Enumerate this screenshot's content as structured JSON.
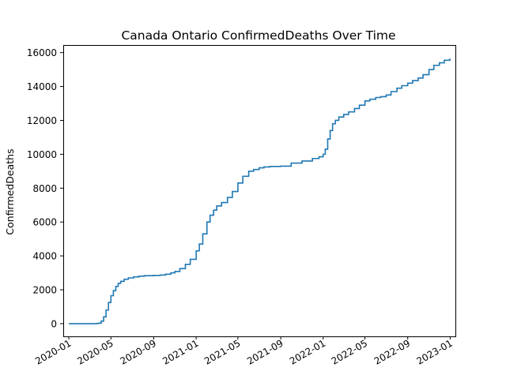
{
  "chart_data": {
    "type": "line",
    "title": "Canada Ontario ConfirmedDeaths Over Time",
    "xlabel": "",
    "ylabel": "ConfirmedDeaths",
    "xlim": [
      "2019-12-16",
      "2023-01-16"
    ],
    "ylim": [
      -750,
      16450
    ],
    "x_ticks": [
      "2020-01",
      "2020-05",
      "2020-09",
      "2021-01",
      "2021-05",
      "2021-09",
      "2022-01",
      "2022-05",
      "2022-09",
      "2023-01"
    ],
    "y_ticks": [
      0,
      2000,
      4000,
      6000,
      8000,
      10000,
      12000,
      14000,
      16000
    ],
    "y_tick_labels": [
      "0",
      "2000",
      "4000",
      "6000",
      "8000",
      "10000",
      "12000",
      "14000",
      "16000"
    ],
    "grid": false,
    "step": true,
    "color": "#1f77b4",
    "series": [
      {
        "name": "",
        "points": [
          [
            "2020-01-01",
            0
          ],
          [
            "2020-03-01",
            0
          ],
          [
            "2020-03-20",
            10
          ],
          [
            "2020-03-27",
            30
          ],
          [
            "2020-04-03",
            150
          ],
          [
            "2020-04-10",
            400
          ],
          [
            "2020-04-17",
            800
          ],
          [
            "2020-04-24",
            1250
          ],
          [
            "2020-05-01",
            1650
          ],
          [
            "2020-05-08",
            1950
          ],
          [
            "2020-05-15",
            2200
          ],
          [
            "2020-05-22",
            2380
          ],
          [
            "2020-05-29",
            2500
          ],
          [
            "2020-06-08",
            2620
          ],
          [
            "2020-06-20",
            2700
          ],
          [
            "2020-07-05",
            2760
          ],
          [
            "2020-07-20",
            2800
          ],
          [
            "2020-08-05",
            2830
          ],
          [
            "2020-09-01",
            2850
          ],
          [
            "2020-09-20",
            2870
          ],
          [
            "2020-10-05",
            2920
          ],
          [
            "2020-10-20",
            3000
          ],
          [
            "2020-11-01",
            3080
          ],
          [
            "2020-11-15",
            3250
          ],
          [
            "2020-12-01",
            3500
          ],
          [
            "2020-12-15",
            3800
          ],
          [
            "2021-01-01",
            4300
          ],
          [
            "2021-01-10",
            4700
          ],
          [
            "2021-01-20",
            5300
          ],
          [
            "2021-02-01",
            6000
          ],
          [
            "2021-02-10",
            6400
          ],
          [
            "2021-02-20",
            6700
          ],
          [
            "2021-03-01",
            6950
          ],
          [
            "2021-03-15",
            7150
          ],
          [
            "2021-04-01",
            7450
          ],
          [
            "2021-04-15",
            7800
          ],
          [
            "2021-05-01",
            8300
          ],
          [
            "2021-05-15",
            8700
          ],
          [
            "2021-06-01",
            9000
          ],
          [
            "2021-06-15",
            9100
          ],
          [
            "2021-07-01",
            9200
          ],
          [
            "2021-07-15",
            9250
          ],
          [
            "2021-08-01",
            9280
          ],
          [
            "2021-09-01",
            9300
          ],
          [
            "2021-10-01",
            9480
          ],
          [
            "2021-11-01",
            9600
          ],
          [
            "2021-12-01",
            9750
          ],
          [
            "2021-12-20",
            9850
          ],
          [
            "2022-01-01",
            10000
          ],
          [
            "2022-01-07",
            10300
          ],
          [
            "2022-01-14",
            10900
          ],
          [
            "2022-01-21",
            11400
          ],
          [
            "2022-01-28",
            11800
          ],
          [
            "2022-02-05",
            12000
          ],
          [
            "2022-02-15",
            12200
          ],
          [
            "2022-03-01",
            12350
          ],
          [
            "2022-03-15",
            12500
          ],
          [
            "2022-04-01",
            12700
          ],
          [
            "2022-04-15",
            12900
          ],
          [
            "2022-05-01",
            13150
          ],
          [
            "2022-05-15",
            13250
          ],
          [
            "2022-06-01",
            13350
          ],
          [
            "2022-06-15",
            13400
          ],
          [
            "2022-07-01",
            13500
          ],
          [
            "2022-07-15",
            13700
          ],
          [
            "2022-08-01",
            13900
          ],
          [
            "2022-08-15",
            14050
          ],
          [
            "2022-09-01",
            14200
          ],
          [
            "2022-09-15",
            14350
          ],
          [
            "2022-10-01",
            14500
          ],
          [
            "2022-10-15",
            14700
          ],
          [
            "2022-11-01",
            15000
          ],
          [
            "2022-11-15",
            15250
          ],
          [
            "2022-12-01",
            15400
          ],
          [
            "2022-12-15",
            15550
          ],
          [
            "2022-12-31",
            15650
          ]
        ]
      }
    ]
  }
}
